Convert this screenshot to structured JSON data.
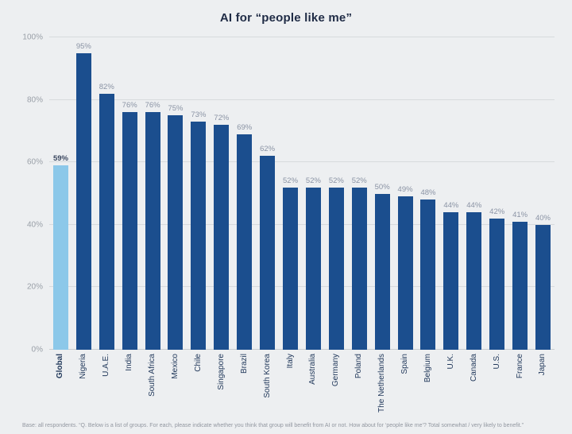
{
  "title": "AI for “people like me”",
  "footnote": "Base: all respondents. “Q. Below is a list of groups. For each, please indicate whether you think that group will benefit from AI or not. How about for ‘people like me’? Total somewhat / very likely to benefit.”",
  "colors": {
    "background": "#edeff1",
    "bar": "#1b4e8e",
    "highlight_bar": "#8cc8e9",
    "title": "#1f2b45",
    "axis_label": "#9aa0a8",
    "value_label": "#8a93a4",
    "category_label": "#233a5c"
  },
  "chart_data": {
    "type": "bar",
    "title": "AI for “people like me”",
    "categories": [
      "Global",
      "Nigeria",
      "U.A.E.",
      "India",
      "South Africa",
      "Mexico",
      "Chile",
      "Singapore",
      "Brazil",
      "South Korea",
      "Italy",
      "Australia",
      "Germany",
      "Poland",
      "The Netherlands",
      "Spain",
      "Belgium",
      "U.K.",
      "Canada",
      "U.S.",
      "France",
      "Japan"
    ],
    "values": [
      59,
      95,
      82,
      76,
      76,
      75,
      73,
      72,
      69,
      62,
      52,
      52,
      52,
      52,
      50,
      49,
      48,
      44,
      44,
      42,
      41,
      40
    ],
    "value_labels": [
      "59%",
      "95%",
      "82%",
      "76%",
      "76%",
      "75%",
      "73%",
      "72%",
      "69%",
      "62%",
      "52%",
      "52%",
      "52%",
      "52%",
      "50%",
      "49%",
      "48%",
      "44%",
      "44%",
      "42%",
      "41%",
      "40%"
    ],
    "xlabel": "",
    "ylabel": "",
    "ylim": [
      0,
      100
    ],
    "yticks": [
      0,
      20,
      40,
      60,
      80,
      100
    ],
    "ytick_labels": [
      "0%",
      "20%",
      "40%",
      "60%",
      "80%",
      "100%"
    ],
    "grid": true,
    "legend": "none",
    "highlight_category": "Global"
  }
}
